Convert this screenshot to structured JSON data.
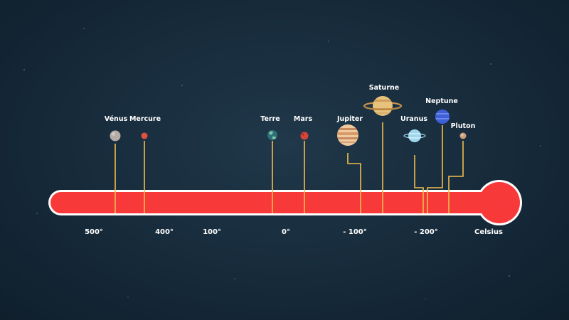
{
  "scale": {
    "unit_label": "Celsius",
    "ticks": [
      {
        "value": 500,
        "label": "500°"
      },
      {
        "value": 400,
        "label": "400°"
      },
      {
        "value": 100,
        "label": "100°"
      },
      {
        "value": 0,
        "label": "0°"
      },
      {
        "value": -100,
        "label": "- 100°"
      },
      {
        "value": -200,
        "label": "- 200°"
      }
    ]
  },
  "planets": [
    {
      "id": "venus",
      "name": "Vénus",
      "temp": 465
    },
    {
      "id": "mercure",
      "name": "Mercure",
      "temp": 430
    },
    {
      "id": "terre",
      "name": "Terre",
      "temp": 15
    },
    {
      "id": "mars",
      "name": "Mars",
      "temp": -20
    },
    {
      "id": "jupiter",
      "name": "Jupiter",
      "temp": -110
    },
    {
      "id": "saturne",
      "name": "Saturne",
      "temp": -140
    },
    {
      "id": "uranus",
      "name": "Uranus",
      "temp": -195
    },
    {
      "id": "neptune",
      "name": "Neptune",
      "temp": -200
    },
    {
      "id": "pluton",
      "name": "Pluton",
      "temp": -225
    }
  ],
  "colors": {
    "thermometer": "#f8393a",
    "outline": "#ffffff",
    "leader": "#f4bd4c",
    "background": "#17293a"
  }
}
